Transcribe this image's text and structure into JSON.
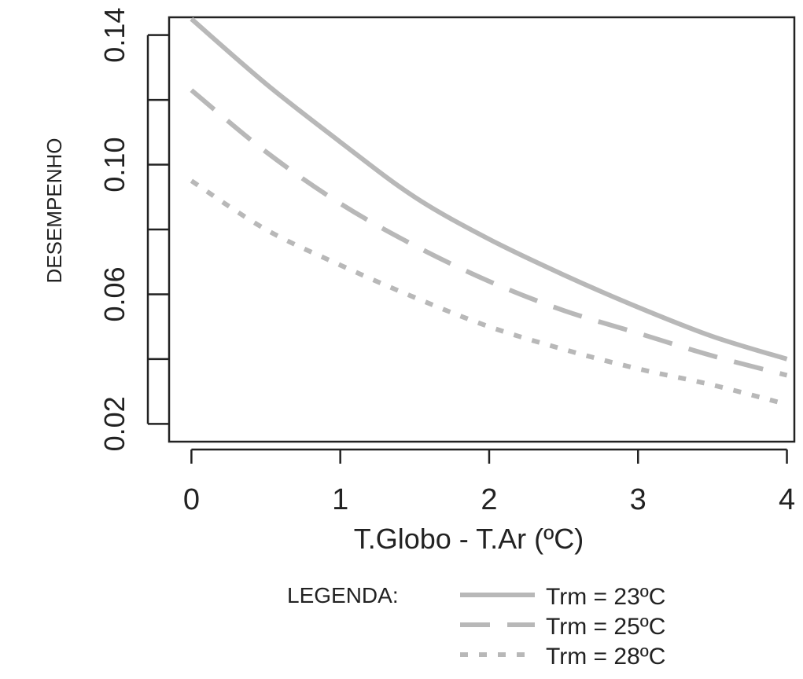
{
  "chart_data": {
    "type": "line",
    "xlabel": "T.Globo - T.Ar (ºC)",
    "ylabel": "DESEMPENHO",
    "xlim": [
      -0.15,
      4.05
    ],
    "ylim": [
      0.0145,
      0.1455
    ],
    "x_ticks": [
      0,
      1,
      2,
      3,
      4
    ],
    "x_tick_labels": [
      "0",
      "1",
      "2",
      "3",
      "4"
    ],
    "y_ticks": [
      0.02,
      0.04,
      0.06,
      0.08,
      0.1,
      0.12,
      0.14
    ],
    "y_tick_labels": [
      "0.02",
      "",
      "0.06",
      "",
      "0.10",
      "",
      "0.14"
    ],
    "grid": false,
    "legend_position": "bottom",
    "legend_title": "LEGENDA:",
    "x": [
      0,
      0.5,
      1,
      1.5,
      2,
      2.5,
      3,
      3.5,
      4
    ],
    "series": [
      {
        "name": "Trm = 23ºC",
        "style": "solid",
        "color": "#b8b8b8",
        "values": [
          0.145,
          0.125,
          0.107,
          0.09,
          0.077,
          0.066,
          0.056,
          0.047,
          0.04
        ]
      },
      {
        "name": "Trm = 25ºC",
        "style": "dashed",
        "color": "#b8b8b8",
        "values": [
          0.123,
          0.104,
          0.088,
          0.075,
          0.064,
          0.055,
          0.048,
          0.041,
          0.035
        ]
      },
      {
        "name": "Trm = 28ºC",
        "style": "dotted",
        "color": "#b8b8b8",
        "values": [
          0.095,
          0.08,
          0.069,
          0.059,
          0.05,
          0.043,
          0.037,
          0.032,
          0.026
        ]
      }
    ]
  }
}
